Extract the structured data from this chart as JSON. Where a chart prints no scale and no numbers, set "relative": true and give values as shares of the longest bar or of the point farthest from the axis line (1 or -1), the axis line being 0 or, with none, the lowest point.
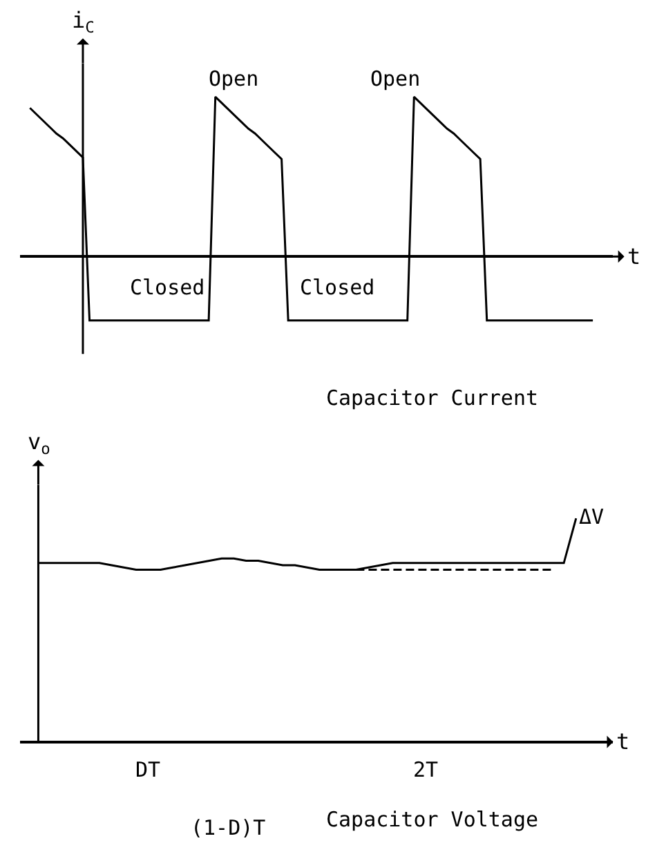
{
  "chart_data": [
    {
      "type": "line",
      "title": "Capacitor Current",
      "ylabel": "i$_{C}$",
      "xlabel": "t",
      "relative": true,
      "line_style": "solid",
      "categories": [
        null,
        null,
        null,
        null,
        null,
        null,
        null,
        null,
        null,
        null,
        null,
        null,
        null,
        null,
        null,
        null,
        null,
        null,
        null,
        null,
        null,
        null,
        null,
        null,
        null,
        null,
        null,
        null,
        null,
        null,
        null,
        null,
        null,
        null,
        null,
        null,
        null,
        null,
        null,
        null,
        null,
        null,
        null,
        null,
        null,
        null,
        null,
        null,
        null,
        null,
        null,
        null,
        null,
        null,
        null,
        null,
        null,
        null,
        null,
        null,
        null,
        null,
        null,
        null,
        null,
        null,
        null,
        null,
        null,
        null,
        null,
        null,
        null,
        null,
        null,
        null,
        null,
        null,
        null,
        null,
        null,
        null,
        null,
        null,
        null,
        null
      ],
      "series": [
        {
          "color": "#000000",
          "values": [
            0.93,
            0.89,
            0.85,
            0.81,
            0.77,
            0.74,
            0.7,
            0.66,
            0.62,
            -0.4,
            -0.4,
            -0.4,
            -0.4,
            -0.4,
            -0.4,
            -0.4,
            -0.4,
            -0.4,
            -0.4,
            -0.4,
            -0.4,
            -0.4,
            -0.4,
            -0.4,
            -0.4,
            -0.4,
            -0.4,
            -0.4,
            1,
            0.96,
            0.92,
            0.88,
            0.84,
            0.8,
            0.77,
            0.73,
            0.69,
            0.65,
            0.61,
            -0.4,
            -0.4,
            -0.4,
            -0.4,
            -0.4,
            -0.4,
            -0.4,
            -0.4,
            -0.4,
            -0.4,
            -0.4,
            -0.4,
            -0.4,
            -0.4,
            -0.4,
            -0.4,
            -0.4,
            -0.4,
            -0.4,
            1,
            0.96,
            0.92,
            0.88,
            0.84,
            0.8,
            0.77,
            0.73,
            0.69,
            0.65,
            0.61,
            -0.4,
            -0.4,
            -0.4,
            -0.4,
            -0.4,
            -0.4,
            -0.4,
            -0.4,
            -0.4,
            -0.4,
            -0.4,
            -0.4,
            -0.4,
            -0.4,
            -0.4,
            -0.4,
            -0.4
          ]
        }
      ],
      "annotations": [
        "Open",
        "Open",
        "Closed",
        "Closed"
      ]
    },
    {
      "type": "line",
      "title": "Capacitor Voltage",
      "ylabel": "v$_{o}$",
      "xlabel": "t",
      "relative": true,
      "categories": [
        null,
        null,
        null,
        null,
        null,
        null,
        null,
        null,
        null,
        null,
        null,
        null,
        null,
        null,
        null,
        null,
        null,
        null,
        null,
        null,
        null,
        null,
        null,
        null,
        null,
        null,
        null,
        null,
        null,
        null,
        null,
        null,
        null,
        null,
        null,
        null,
        null,
        null,
        null,
        null,
        null,
        null,
        null,
        null,
        null
      ],
      "series": [
        {
          "color": "#000000",
          "line_style": "solid",
          "values": [
            0.8,
            0.8,
            0.8,
            0.8,
            0.8,
            0.8,
            0.79,
            0.78,
            0.77,
            0.77,
            0.77,
            0.78,
            0.79,
            0.8,
            0.81,
            0.82,
            0.82,
            0.81,
            0.81,
            0.8,
            0.79,
            0.79,
            0.78,
            0.77,
            0.77,
            0.77,
            0.77,
            0.78,
            0.79,
            0.8,
            0.8,
            0.8,
            0.8,
            0.8,
            0.8,
            0.8,
            0.8,
            0.8,
            0.8,
            0.8,
            0.8,
            0.8,
            0.8,
            0.8,
            1.0
          ]
        },
        {
          "color": "#000000",
          "line_style": "dashed",
          "values": [
            null,
            null,
            null,
            null,
            null,
            null,
            null,
            null,
            null,
            null,
            null,
            null,
            null,
            null,
            null,
            null,
            null,
            null,
            null,
            null,
            null,
            null,
            null,
            null,
            null,
            null,
            0.77,
            0.77,
            0.77,
            0.77,
            0.77,
            0.77,
            0.77,
            0.77,
            0.77,
            0.77,
            0.77,
            0.77,
            0.77,
            0.77,
            0.77,
            0.77,
            0.77,
            null,
            null
          ]
        }
      ],
      "annotations": [
        "DT",
        "(1-D)T",
        "2T",
        "ΔV"
      ]
    }
  ]
}
